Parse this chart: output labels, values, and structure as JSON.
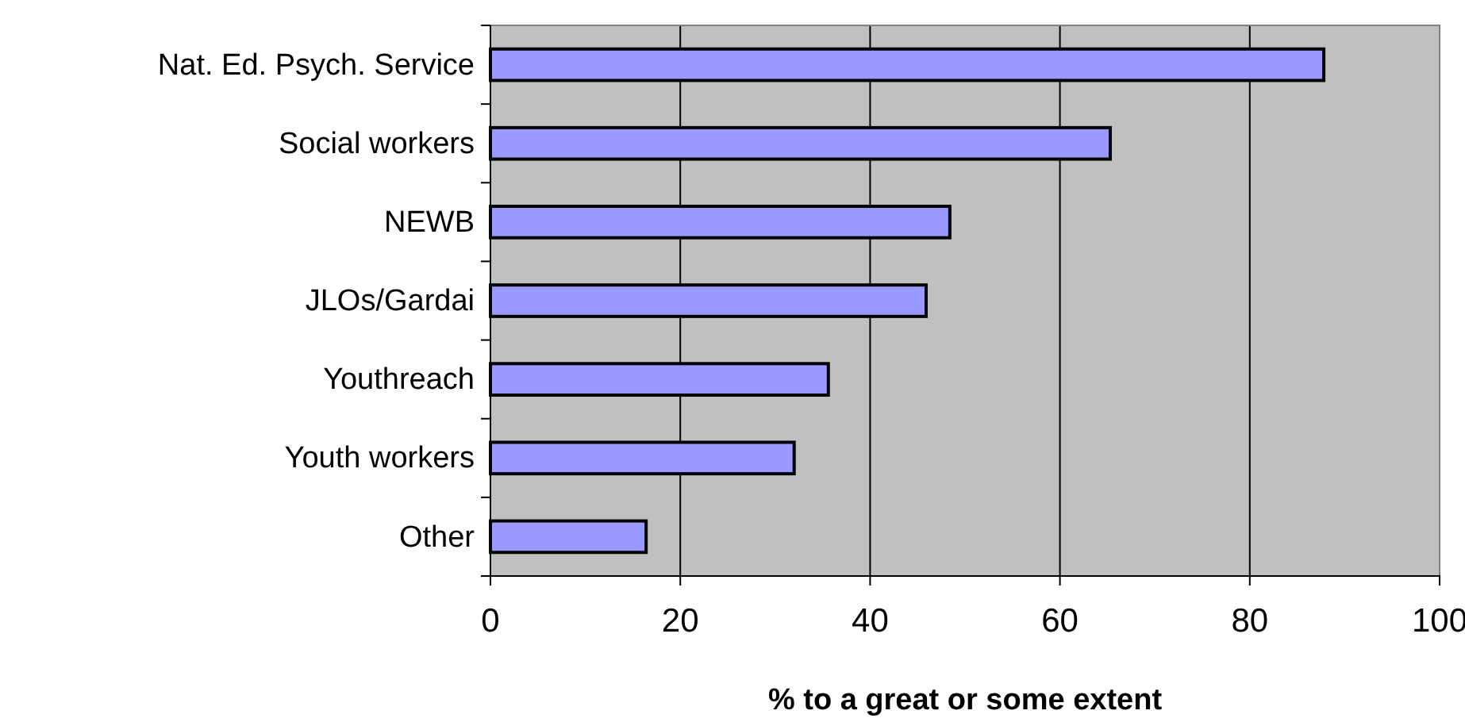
{
  "chart_data": {
    "type": "bar",
    "orientation": "horizontal",
    "xlabel": "% to a great or some extent",
    "categories": [
      "Nat. Ed. Psych. Service",
      "Social workers",
      "NEWB",
      "JLOs/Gardai",
      "Youthreach",
      "Youth workers",
      "Other"
    ],
    "values": [
      87.8,
      65.3,
      48.4,
      45.9,
      35.6,
      32.0,
      16.4
    ],
    "color": "#9999ff",
    "xlim": [
      0,
      100
    ],
    "xticks": [
      0,
      20,
      40,
      60,
      80,
      100
    ],
    "grid": "x"
  }
}
